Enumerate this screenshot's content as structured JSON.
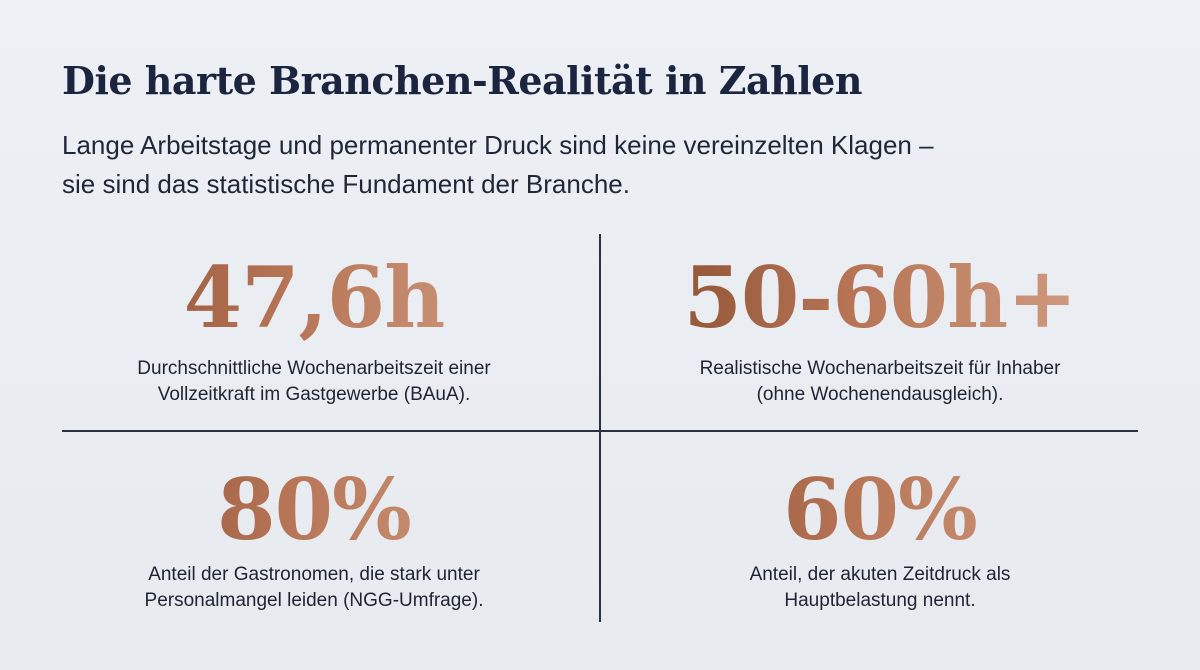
{
  "header": {
    "title": "Die harte Branchen-Realität in Zahlen",
    "subtitle_lines": [
      "Lange Arbeitstage und permanenter Druck sind keine vereinzelten Klagen –",
      "sie sind das statistische Fundament der Branche."
    ]
  },
  "stats": [
    {
      "value": "47,6h",
      "desc_lines": [
        "Durchschnittliche Wochenarbeitszeit einer",
        "Vollzeitkraft im Gastgewerbe (BAuA)."
      ]
    },
    {
      "value": "50-60h+",
      "desc_lines": [
        "Realistische Wochenarbeitszeit für Inhaber",
        "(ohne Wochenendausgleich)."
      ]
    },
    {
      "value": "80%",
      "desc_lines": [
        "Anteil der Gastronomen, die stark unter",
        "Personalmangel leiden (NGG-Umfrage)."
      ]
    },
    {
      "value": "60%",
      "desc_lines": [
        "Anteil, der akuten Zeitdruck als",
        "Hauptbelastung nennt."
      ]
    }
  ],
  "colors": {
    "background": "#e9ecf1",
    "title": "#1c2540",
    "accent_dark": "#8a4e30",
    "accent_light": "#d4a288",
    "divider": "#2a3142"
  }
}
